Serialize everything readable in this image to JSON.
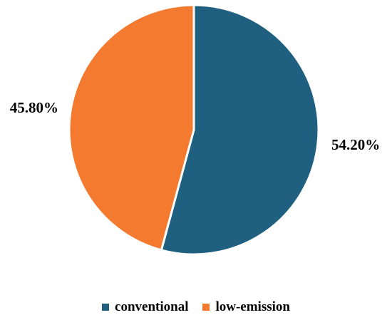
{
  "chart_data": {
    "type": "pie",
    "title": "",
    "slices": [
      {
        "label": "conventional",
        "value": 54.2,
        "data_label": "54.20%",
        "color": "#1f5f80"
      },
      {
        "label": "low-emission",
        "value": 45.8,
        "data_label": "45.80%",
        "color": "#f37a2f"
      }
    ],
    "start_angle_deg": 0,
    "direction": "clockwise",
    "legend_position": "bottom"
  }
}
